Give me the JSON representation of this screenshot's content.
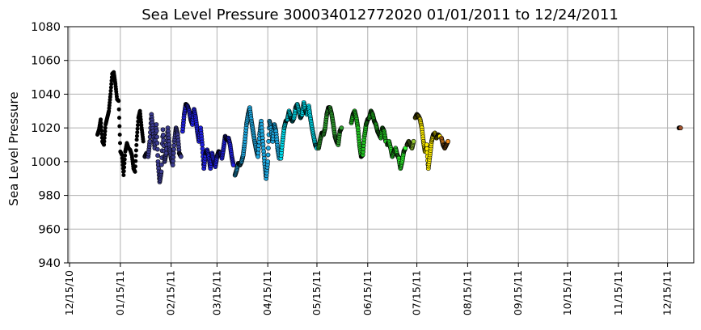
{
  "chart_data": {
    "type": "scatter",
    "title": "Sea Level Pressure 300034012772020  01/01/2011 to 12/24/2011",
    "xlabel": "",
    "ylabel": "Sea Level Pressure",
    "ylim": [
      940,
      1080
    ],
    "yticks": [
      940,
      960,
      980,
      1000,
      1020,
      1040,
      1060,
      1080
    ],
    "xlim": [
      "2010-12-14",
      "2011-12-31"
    ],
    "xticks": [
      {
        "date": "2010-12-15",
        "label": "12/15/10"
      },
      {
        "date": "2011-01-15",
        "label": "01/15/11"
      },
      {
        "date": "2011-02-15",
        "label": "02/15/11"
      },
      {
        "date": "2011-03-15",
        "label": "03/15/11"
      },
      {
        "date": "2011-04-15",
        "label": "04/15/11"
      },
      {
        "date": "2011-05-15",
        "label": "05/15/11"
      },
      {
        "date": "2011-06-15",
        "label": "06/15/11"
      },
      {
        "date": "2011-07-15",
        "label": "07/15/11"
      },
      {
        "date": "2011-08-15",
        "label": "08/15/11"
      },
      {
        "date": "2011-09-15",
        "label": "09/15/11"
      },
      {
        "date": "2011-10-15",
        "label": "10/15/11"
      },
      {
        "date": "2011-11-15",
        "label": "11/15/11"
      },
      {
        "date": "2011-12-15",
        "label": "12/15/11"
      }
    ],
    "grid": true,
    "series": [
      {
        "color": "#000000",
        "points": [
          [
            "2011-01-01",
            1016
          ],
          [
            "2011-01-02",
            1019
          ],
          [
            "2011-01-03",
            1025
          ],
          [
            "2011-01-04",
            1012
          ],
          [
            "2011-01-05",
            1010
          ],
          [
            "2011-01-06",
            1022
          ],
          [
            "2011-01-07",
            1026
          ],
          [
            "2011-01-08",
            1030
          ],
          [
            "2011-01-09",
            1040
          ],
          [
            "2011-01-10",
            1052
          ],
          [
            "2011-01-11",
            1053
          ],
          [
            "2011-01-12",
            1046
          ],
          [
            "2011-01-13",
            1037
          ],
          [
            "2011-01-14",
            1036
          ],
          [
            "2011-01-15",
            1006
          ],
          [
            "2011-01-16",
            1004
          ],
          [
            "2011-01-17",
            992
          ],
          [
            "2011-01-18",
            1006
          ],
          [
            "2011-01-19",
            1011
          ],
          [
            "2011-01-20",
            1008
          ],
          [
            "2011-01-21",
            1007
          ],
          [
            "2011-01-22",
            1004
          ],
          [
            "2011-01-23",
            996
          ],
          [
            "2011-01-24",
            994
          ],
          [
            "2011-01-25",
            1013
          ],
          [
            "2011-01-26",
            1026
          ],
          [
            "2011-01-27",
            1030
          ],
          [
            "2011-01-28",
            1020
          ],
          [
            "2011-01-29",
            1012
          ]
        ]
      },
      {
        "color": "#3b3b8f",
        "points": [
          [
            "2011-01-30",
            1003
          ],
          [
            "2011-01-31",
            1005
          ],
          [
            "2011-02-01",
            1003
          ],
          [
            "2011-02-02",
            1012
          ],
          [
            "2011-02-03",
            1028
          ],
          [
            "2011-02-04",
            1018
          ],
          [
            "2011-02-05",
            1008
          ],
          [
            "2011-02-06",
            1022
          ],
          [
            "2011-02-07",
            1000
          ],
          [
            "2011-02-08",
            988
          ],
          [
            "2011-02-09",
            994
          ],
          [
            "2011-02-10",
            1019
          ],
          [
            "2011-02-11",
            1000
          ],
          [
            "2011-02-12",
            1005
          ],
          [
            "2011-02-13",
            1020
          ],
          [
            "2011-02-14",
            1008
          ],
          [
            "2011-02-15",
            1002
          ],
          [
            "2011-02-16",
            998
          ],
          [
            "2011-02-17",
            1012
          ],
          [
            "2011-02-18",
            1020
          ],
          [
            "2011-02-19",
            1016
          ],
          [
            "2011-02-20",
            1005
          ],
          [
            "2011-02-21",
            1003
          ]
        ]
      },
      {
        "color": "#2020e0",
        "points": [
          [
            "2011-02-22",
            1018
          ],
          [
            "2011-02-23",
            1028
          ],
          [
            "2011-02-24",
            1034
          ],
          [
            "2011-02-25",
            1033
          ],
          [
            "2011-02-26",
            1030
          ],
          [
            "2011-02-27",
            1025
          ],
          [
            "2011-02-28",
            1022
          ],
          [
            "2011-03-01",
            1031
          ],
          [
            "2011-03-02",
            1026
          ],
          [
            "2011-03-03",
            1018
          ],
          [
            "2011-03-04",
            1012
          ],
          [
            "2011-03-05",
            1020
          ],
          [
            "2011-03-06",
            1010
          ],
          [
            "2011-03-07",
            996
          ],
          [
            "2011-03-08",
            1005
          ],
          [
            "2011-03-09",
            1007
          ],
          [
            "2011-03-10",
            1003
          ],
          [
            "2011-03-11",
            996
          ],
          [
            "2011-03-12",
            1005
          ],
          [
            "2011-03-13",
            1000
          ],
          [
            "2011-03-14",
            997
          ],
          [
            "2011-03-15",
            1003
          ],
          [
            "2011-03-16",
            1006
          ],
          [
            "2011-03-17",
            1005
          ],
          [
            "2011-03-18",
            1002
          ],
          [
            "2011-03-19",
            1008
          ],
          [
            "2011-03-20",
            1015
          ],
          [
            "2011-03-21",
            1013
          ],
          [
            "2011-03-22",
            1014
          ],
          [
            "2011-03-23",
            1010
          ],
          [
            "2011-03-24",
            1003
          ],
          [
            "2011-03-25",
            998
          ]
        ]
      },
      {
        "color": "#1fa8e0",
        "points": [
          [
            "2011-03-26",
            992
          ],
          [
            "2011-03-27",
            995
          ],
          [
            "2011-03-28",
            999
          ],
          [
            "2011-03-29",
            998
          ],
          [
            "2011-03-30",
            1000
          ],
          [
            "2011-03-31",
            1004
          ],
          [
            "2011-04-01",
            1012
          ],
          [
            "2011-04-02",
            1022
          ],
          [
            "2011-04-03",
            1028
          ],
          [
            "2011-04-04",
            1032
          ],
          [
            "2011-04-05",
            1024
          ],
          [
            "2011-04-06",
            1018
          ],
          [
            "2011-04-07",
            1012
          ],
          [
            "2011-04-08",
            1007
          ],
          [
            "2011-04-09",
            1003
          ],
          [
            "2011-04-10",
            1016
          ],
          [
            "2011-04-11",
            1024
          ],
          [
            "2011-04-12",
            1012
          ],
          [
            "2011-04-13",
            1000
          ],
          [
            "2011-04-14",
            990
          ],
          [
            "2011-04-15",
            1000
          ],
          [
            "2011-04-16",
            1024
          ],
          [
            "2011-04-17",
            1020
          ],
          [
            "2011-04-18",
            1012
          ],
          [
            "2011-04-19",
            1022
          ],
          [
            "2011-04-20",
            1018
          ],
          [
            "2011-04-21",
            1008
          ],
          [
            "2011-04-22",
            1002
          ]
        ]
      },
      {
        "color": "#00e0f0",
        "points": [
          [
            "2011-04-23",
            1002
          ],
          [
            "2011-04-24",
            1012
          ],
          [
            "2011-04-25",
            1020
          ],
          [
            "2011-04-26",
            1024
          ],
          [
            "2011-04-27",
            1025
          ],
          [
            "2011-04-28",
            1030
          ],
          [
            "2011-04-29",
            1026
          ],
          [
            "2011-04-30",
            1024
          ],
          [
            "2011-05-01",
            1026
          ],
          [
            "2011-05-02",
            1032
          ],
          [
            "2011-05-03",
            1034
          ],
          [
            "2011-05-04",
            1030
          ],
          [
            "2011-05-05",
            1026
          ],
          [
            "2011-05-06",
            1028
          ],
          [
            "2011-05-07",
            1035
          ],
          [
            "2011-05-08",
            1030
          ],
          [
            "2011-05-09",
            1028
          ],
          [
            "2011-05-10",
            1033
          ],
          [
            "2011-05-11",
            1026
          ],
          [
            "2011-05-12",
            1020
          ],
          [
            "2011-05-13",
            1015
          ],
          [
            "2011-05-14",
            1010
          ],
          [
            "2011-05-15",
            1008
          ]
        ]
      },
      {
        "color": "#2e9e2e",
        "points": [
          [
            "2011-05-16",
            1008
          ],
          [
            "2011-05-17",
            1013
          ],
          [
            "2011-05-18",
            1017
          ],
          [
            "2011-05-19",
            1016
          ],
          [
            "2011-05-20",
            1020
          ],
          [
            "2011-05-21",
            1028
          ],
          [
            "2011-05-22",
            1032
          ],
          [
            "2011-05-23",
            1032
          ],
          [
            "2011-05-24",
            1028
          ],
          [
            "2011-05-25",
            1022
          ],
          [
            "2011-05-26",
            1015
          ],
          [
            "2011-05-27",
            1012
          ],
          [
            "2011-05-28",
            1010
          ],
          [
            "2011-05-29",
            1018
          ],
          [
            "2011-05-30",
            1020
          ]
        ]
      },
      {
        "color": "#22c222",
        "points": [
          [
            "2011-06-05",
            1023
          ],
          [
            "2011-06-06",
            1028
          ],
          [
            "2011-06-07",
            1030
          ],
          [
            "2011-06-08",
            1026
          ],
          [
            "2011-06-09",
            1020
          ],
          [
            "2011-06-10",
            1010
          ],
          [
            "2011-06-11",
            1003
          ],
          [
            "2011-06-12",
            1004
          ],
          [
            "2011-06-13",
            1015
          ],
          [
            "2011-06-14",
            1022
          ],
          [
            "2011-06-15",
            1025
          ],
          [
            "2011-06-16",
            1026
          ],
          [
            "2011-06-17",
            1030
          ],
          [
            "2011-06-18",
            1028
          ],
          [
            "2011-06-19",
            1024
          ],
          [
            "2011-06-20",
            1022
          ],
          [
            "2011-06-21",
            1018
          ],
          [
            "2011-06-22",
            1016
          ],
          [
            "2011-06-23",
            1014
          ],
          [
            "2011-06-24",
            1020
          ],
          [
            "2011-06-25",
            1018
          ],
          [
            "2011-06-26",
            1012
          ]
        ]
      },
      {
        "color": "#33ff33",
        "points": [
          [
            "2011-06-27",
            1010
          ],
          [
            "2011-06-28",
            1012
          ],
          [
            "2011-06-29",
            1008
          ],
          [
            "2011-06-30",
            1003
          ],
          [
            "2011-07-01",
            1006
          ],
          [
            "2011-07-02",
            1008
          ],
          [
            "2011-07-03",
            1004
          ],
          [
            "2011-07-04",
            1002
          ],
          [
            "2011-07-05",
            996
          ],
          [
            "2011-07-06",
            1000
          ],
          [
            "2011-07-07",
            1006
          ],
          [
            "2011-07-08",
            1008
          ]
        ]
      },
      {
        "color": "#9acd32",
        "points": [
          [
            "2011-07-09",
            1010
          ],
          [
            "2011-07-10",
            1012
          ],
          [
            "2011-07-11",
            1010
          ],
          [
            "2011-07-12",
            1008
          ],
          [
            "2011-07-13",
            1012
          ]
        ]
      },
      {
        "color": "#ffee00",
        "points": [
          [
            "2011-07-14",
            1026
          ],
          [
            "2011-07-15",
            1028
          ],
          [
            "2011-07-16",
            1027
          ],
          [
            "2011-07-17",
            1025
          ],
          [
            "2011-07-18",
            1020
          ],
          [
            "2011-07-19",
            1012
          ],
          [
            "2011-07-20",
            1006
          ],
          [
            "2011-07-21",
            1010
          ],
          [
            "2011-07-22",
            996
          ],
          [
            "2011-07-23",
            1004
          ],
          [
            "2011-07-24",
            1012
          ],
          [
            "2011-07-25",
            1016
          ],
          [
            "2011-07-26",
            1017
          ],
          [
            "2011-07-27",
            1014
          ],
          [
            "2011-07-28",
            1016
          ],
          [
            "2011-07-29",
            1015
          ]
        ]
      },
      {
        "color": "#f08a1a",
        "points": [
          [
            "2011-07-30",
            1014
          ],
          [
            "2011-07-31",
            1010
          ],
          [
            "2011-08-01",
            1008
          ],
          [
            "2011-08-02",
            1010
          ],
          [
            "2011-08-03",
            1012
          ]
        ]
      },
      {
        "color": "#a0522d",
        "points": [
          [
            "2011-12-22",
            1020
          ],
          [
            "2011-12-23",
            1020
          ]
        ]
      }
    ]
  }
}
